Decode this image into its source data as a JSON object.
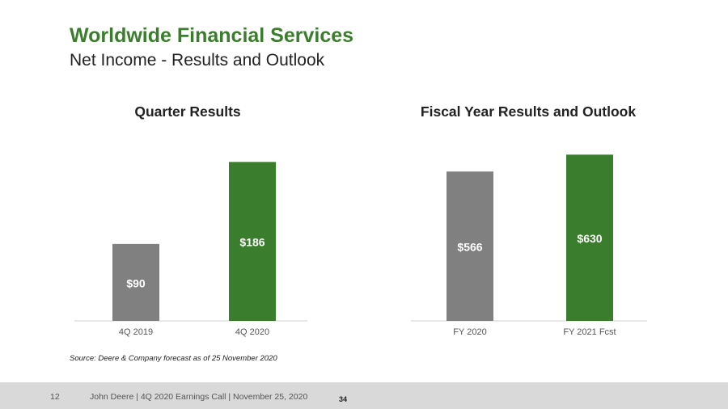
{
  "header": {
    "title": "Worldwide Financial Services",
    "subtitle": "Net Income - Results and Outlook"
  },
  "colors": {
    "brand_green": "#3a7d2c",
    "prior_gray": "#808080",
    "footer_bg": "#d9d9d9"
  },
  "chart_data": [
    {
      "type": "bar",
      "title": "Quarter Results",
      "categories": [
        "4Q 2019",
        "4Q 2020"
      ],
      "values": [
        90,
        186
      ],
      "data_labels": [
        "$90",
        "$186"
      ],
      "bar_colors": [
        "#808080",
        "#3a7d2c"
      ],
      "xlabel": "",
      "ylabel": "",
      "ylim": [
        0,
        210
      ],
      "grid": false
    },
    {
      "type": "bar",
      "title": "Fiscal Year Results and Outlook",
      "categories": [
        "FY 2020",
        "FY 2021 Fcst"
      ],
      "values": [
        566,
        630
      ],
      "data_labels": [
        "$566",
        "$630"
      ],
      "bar_colors": [
        "#808080",
        "#3a7d2c"
      ],
      "xlabel": "",
      "ylabel": "",
      "ylim": [
        0,
        680
      ],
      "grid": false
    }
  ],
  "source_note": "Source: Deere & Company forecast as of 25 November 2020",
  "footer": {
    "slide_number": "12",
    "text": "John Deere | 4Q 2020 Earnings Call | November 25, 2020",
    "page_label": "34"
  }
}
